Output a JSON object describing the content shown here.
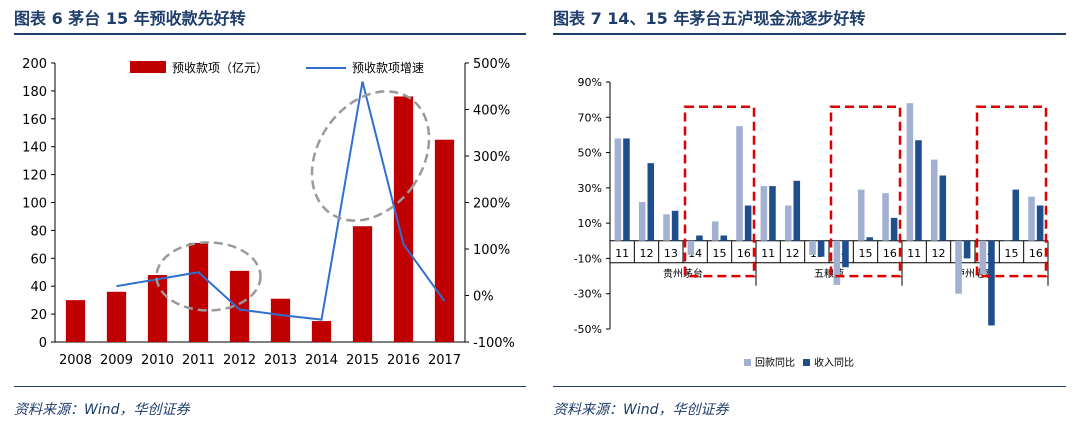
{
  "colors": {
    "title": "#1f3d6b",
    "rule": "#1f3d6b",
    "bar_red": "#c00000",
    "line_blue": "#2f6fd0",
    "light_bar": "#a2b0d2",
    "dark_bar": "#1f4e8c",
    "dash_red": "#e00000",
    "ellipse": "#9a9a9a",
    "source": "#1f3d6b"
  },
  "left": {
    "title": "图表 6 茅台 15 年预收款先好转",
    "source": "资料来源：Wind，华创证券"
  },
  "right": {
    "title": "图表 7 14、15 年茅台五泸现金流逐步好转",
    "source": "资料来源：Wind，华创证券"
  },
  "chart_data": [
    {
      "type": "bar",
      "categories": [
        "2008",
        "2009",
        "2010",
        "2011",
        "2012",
        "2013",
        "2014",
        "2015",
        "2016",
        "2017"
      ],
      "series": [
        {
          "name": "预收款项（亿元）",
          "type": "bar",
          "axis": "left",
          "values": [
            30,
            36,
            48,
            71,
            51,
            31,
            15,
            83,
            176,
            145
          ]
        },
        {
          "name": "预收款项增速",
          "type": "line",
          "axis": "right",
          "unit": "%",
          "values": [
            null,
            20,
            35,
            50,
            -30,
            -42,
            -52,
            460,
            110,
            -12
          ]
        }
      ],
      "ylim": [
        0,
        200
      ],
      "yticks": [
        "0",
        "20",
        "40",
        "60",
        "80",
        "100",
        "120",
        "140",
        "160",
        "180",
        "200"
      ],
      "y2lim": [
        -100,
        500
      ],
      "y2ticks": [
        "-100%",
        "0%",
        "100%",
        "200%",
        "300%",
        "400%",
        "500%"
      ],
      "legend": "top",
      "grid": false
    },
    {
      "type": "bar",
      "groups": [
        {
          "name": "贵州茅台",
          "categories": [
            "11",
            "12",
            "13",
            "14",
            "15",
            "16"
          ]
        },
        {
          "name": "五粮液",
          "categories": [
            "11",
            "12",
            "13",
            "14",
            "15",
            "16"
          ]
        },
        {
          "name": "泸州老窖",
          "categories": [
            "11",
            "12",
            "13",
            "14",
            "15",
            "16"
          ]
        }
      ],
      "series": [
        {
          "name": "回款同比",
          "unit": "%",
          "values": [
            58,
            22,
            15,
            -8,
            11,
            65,
            31,
            20,
            -8,
            -25,
            29,
            27,
            78,
            46,
            -30,
            -19,
            0,
            25
          ]
        },
        {
          "name": "收入同比",
          "unit": "%",
          "values": [
            58,
            44,
            17,
            3,
            3,
            20,
            31,
            34,
            -9,
            -15,
            2,
            13,
            57,
            37,
            -10,
            -48,
            29,
            20
          ]
        }
      ],
      "ylim": [
        -50,
        90
      ],
      "yticks": [
        "-50%",
        "-30%",
        "-10%",
        "10%",
        "30%",
        "50%",
        "70%",
        "90%"
      ],
      "legend": "bottom",
      "grid": false
    }
  ]
}
